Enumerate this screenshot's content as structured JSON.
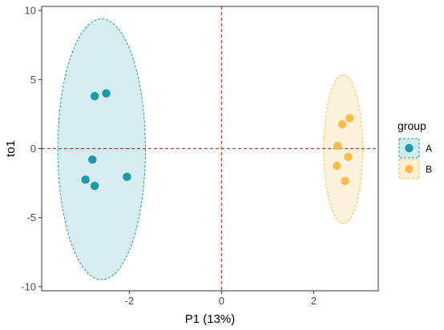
{
  "chart_data": {
    "type": "scatter",
    "xlabel": "P1 (13%)",
    "ylabel": "to1",
    "xlim": [
      -3.9,
      3.4
    ],
    "ylim": [
      -10.3,
      10.3
    ],
    "xticks": [
      -2,
      0,
      2
    ],
    "yticks": [
      -10,
      -5,
      0,
      5,
      10
    ],
    "grid": false,
    "reference_lines": {
      "x": 0,
      "y": 0,
      "color": "#C0392B",
      "style": "dashed"
    },
    "legend": {
      "title": "group",
      "position": "right"
    },
    "series": [
      {
        "name": "A",
        "color": "#1B9AAA",
        "fill": "#D0EAEE",
        "points": [
          [
            -2.75,
            3.8
          ],
          [
            -2.5,
            4.0
          ],
          [
            -2.8,
            -0.8
          ],
          [
            -2.05,
            -2.05
          ],
          [
            -2.95,
            -2.25
          ],
          [
            -2.75,
            -2.7
          ]
        ],
        "ellipse": {
          "center": [
            -2.6,
            -0.05
          ],
          "x_radius": 0.95,
          "y_radius": 9.45
        }
      },
      {
        "name": "B",
        "color": "#FDB94A",
        "fill": "#FDF0D5",
        "points": [
          [
            2.62,
            1.75
          ],
          [
            2.78,
            2.2
          ],
          [
            2.52,
            0.2
          ],
          [
            2.75,
            -0.6
          ],
          [
            2.5,
            -1.25
          ],
          [
            2.68,
            -2.35
          ]
        ],
        "ellipse": {
          "center": [
            2.64,
            -0.05
          ],
          "x_radius": 0.42,
          "y_radius": 5.4
        }
      }
    ]
  }
}
